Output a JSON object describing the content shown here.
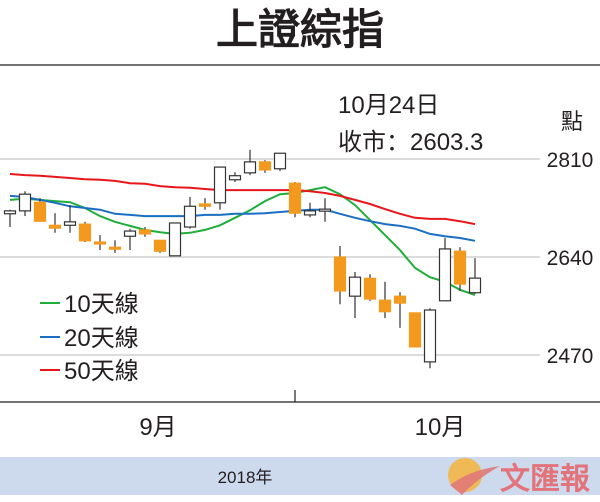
{
  "chart_data": {
    "type": "candlestick",
    "title": "上證綜指",
    "annotation": {
      "date": "10月24日",
      "close_label": "收市：2603.3"
    },
    "ylabel": "點",
    "yticks": [
      2810,
      2640,
      2470
    ],
    "ylim": [
      2400,
      2900
    ],
    "xticks": [
      "9月",
      "10月"
    ],
    "footer": "2018年",
    "grid": true,
    "legend_placement": "left",
    "colors": {
      "up": "#ffffff",
      "down": "#f39a1e",
      "ma10": "#1fae3a",
      "ma20": "#1a6fc4",
      "ma50": "#e8161b"
    },
    "candles": [
      {
        "o": 2715,
        "h": 2722,
        "l": 2692,
        "c": 2720
      },
      {
        "o": 2720,
        "h": 2754,
        "l": 2711,
        "c": 2749
      },
      {
        "o": 2735,
        "h": 2742,
        "l": 2702,
        "c": 2702
      },
      {
        "o": 2695,
        "h": 2716,
        "l": 2682,
        "c": 2690
      },
      {
        "o": 2695,
        "h": 2730,
        "l": 2682,
        "c": 2701
      },
      {
        "o": 2697,
        "h": 2701,
        "l": 2666,
        "c": 2668
      },
      {
        "o": 2666,
        "h": 2678,
        "l": 2652,
        "c": 2664
      },
      {
        "o": 2657,
        "h": 2669,
        "l": 2647,
        "c": 2654
      },
      {
        "o": 2676,
        "h": 2689,
        "l": 2652,
        "c": 2685
      },
      {
        "o": 2687,
        "h": 2692,
        "l": 2675,
        "c": 2680
      },
      {
        "o": 2669,
        "h": 2669,
        "l": 2647,
        "c": 2650
      },
      {
        "o": 2642,
        "h": 2699,
        "l": 2642,
        "c": 2699
      },
      {
        "o": 2692,
        "h": 2744,
        "l": 2689,
        "c": 2728
      },
      {
        "o": 2732,
        "h": 2742,
        "l": 2722,
        "c": 2728
      },
      {
        "o": 2734,
        "h": 2796,
        "l": 2722,
        "c": 2796
      },
      {
        "o": 2774,
        "h": 2787,
        "l": 2770,
        "c": 2781
      },
      {
        "o": 2786,
        "h": 2826,
        "l": 2782,
        "c": 2805
      },
      {
        "o": 2805,
        "h": 2808,
        "l": 2786,
        "c": 2791
      },
      {
        "o": 2793,
        "h": 2820,
        "l": 2789,
        "c": 2820
      },
      {
        "o": 2768,
        "h": 2770,
        "l": 2709,
        "c": 2716
      },
      {
        "o": 2713,
        "h": 2734,
        "l": 2709,
        "c": 2720
      },
      {
        "o": 2722,
        "h": 2742,
        "l": 2701,
        "c": 2723
      },
      {
        "o": 2640,
        "h": 2659,
        "l": 2558,
        "c": 2581
      },
      {
        "o": 2572,
        "h": 2614,
        "l": 2534,
        "c": 2605
      },
      {
        "o": 2603,
        "h": 2610,
        "l": 2564,
        "c": 2567
      },
      {
        "o": 2565,
        "h": 2597,
        "l": 2534,
        "c": 2545
      },
      {
        "o": 2572,
        "h": 2579,
        "l": 2517,
        "c": 2560
      },
      {
        "o": 2543,
        "h": 2543,
        "l": 2484,
        "c": 2484
      },
      {
        "o": 2458,
        "h": 2551,
        "l": 2447,
        "c": 2548
      },
      {
        "o": 2564,
        "h": 2673,
        "l": 2564,
        "c": 2654
      },
      {
        "o": 2650,
        "h": 2657,
        "l": 2581,
        "c": 2593
      },
      {
        "o": 2578,
        "h": 2638,
        "l": 2576,
        "c": 2603.3
      }
    ],
    "series": [
      {
        "name": "10天線",
        "values": [
          2739,
          2741,
          2739,
          2737,
          2735,
          2725,
          2711,
          2701,
          2694,
          2687,
          2683,
          2680,
          2682,
          2687,
          2695,
          2708,
          2721,
          2737,
          2749,
          2751,
          2756,
          2761,
          2749,
          2730,
          2704,
          2678,
          2652,
          2621,
          2605,
          2597,
          2583,
          2574
        ]
      },
      {
        "name": "20天線",
        "values": [
          2746,
          2744,
          2739,
          2734,
          2728,
          2725,
          2722,
          2715,
          2713,
          2711,
          2711,
          2711,
          2711,
          2713,
          2713,
          2715,
          2715,
          2716,
          2718,
          2720,
          2722,
          2722,
          2715,
          2708,
          2702,
          2697,
          2694,
          2689,
          2680,
          2676,
          2673,
          2668
        ]
      },
      {
        "name": "50天線",
        "values": [
          2784,
          2782,
          2781,
          2779,
          2777,
          2775,
          2774,
          2772,
          2768,
          2767,
          2763,
          2761,
          2760,
          2758,
          2756,
          2756,
          2756,
          2756,
          2756,
          2756,
          2754,
          2751,
          2746,
          2739,
          2732,
          2723,
          2715,
          2708,
          2706,
          2706,
          2702,
          2697
        ]
      }
    ]
  },
  "logo": {
    "text": "文匯報"
  }
}
